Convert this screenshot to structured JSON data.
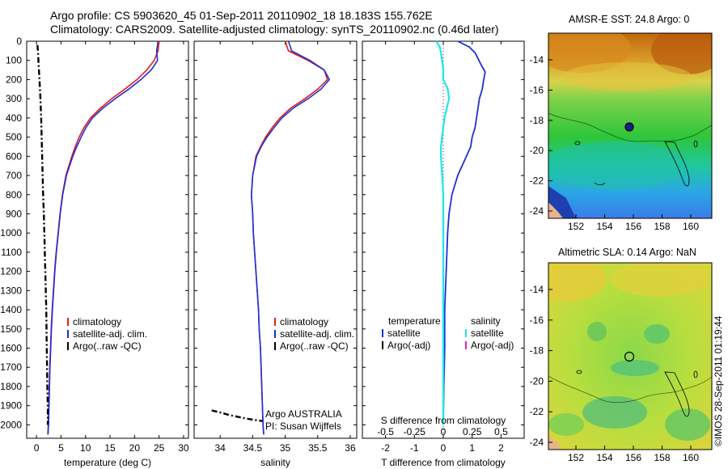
{
  "header": {
    "title_line1": "Argo profile: CS 5903620_45 01-Sep-2011 20110902_18 18.183S 155.762E",
    "title_line2": "Climatology: CARS2009. Satellite-adjusted climatology: synTS_20110902.nc (0.46d later)"
  },
  "chart_data": [
    {
      "type": "line",
      "xlabel": "temperature (deg C)",
      "xlim": [
        -2,
        31
      ],
      "xticks": [
        0,
        5,
        10,
        15,
        20,
        25,
        30
      ],
      "ylim": [
        2070,
        0
      ],
      "yticks": [
        0,
        100,
        200,
        300,
        400,
        500,
        600,
        700,
        800,
        900,
        1000,
        1100,
        1200,
        1300,
        1400,
        1500,
        1600,
        1700,
        1800,
        1900,
        2000
      ],
      "legend": [
        "climatology",
        "satellite-adj. clim.",
        "Argo(..raw -QC)"
      ],
      "colors": [
        "#e31b1b",
        "#1d2fd8",
        "#000000"
      ],
      "series": [
        {
          "name": "climatology",
          "depth": [
            0,
            50,
            100,
            150,
            200,
            250,
            300,
            350,
            400,
            450,
            500,
            550,
            600,
            700,
            800,
            900,
            1000,
            1100,
            1200,
            1300,
            1400,
            1500,
            1600,
            1700,
            1800,
            1900,
            2000,
            2050
          ],
          "values": [
            25.0,
            24.8,
            24.0,
            22.5,
            20.5,
            18.0,
            15.3,
            13.0,
            11.0,
            9.7,
            8.7,
            7.9,
            7.2,
            6.0,
            5.3,
            4.8,
            4.4,
            4.0,
            3.7,
            3.45,
            3.2,
            3.0,
            2.85,
            2.7,
            2.6,
            2.5,
            2.4,
            2.3
          ]
        },
        {
          "name": "satellite-adj. clim.",
          "depth": [
            0,
            50,
            100,
            150,
            200,
            250,
            300,
            350,
            400,
            450,
            500,
            550,
            600,
            700,
            800,
            900,
            1000,
            1100,
            1200,
            1300,
            1400,
            1500,
            1600,
            1700,
            1800,
            1900,
            2000,
            2050
          ],
          "values": [
            24.8,
            24.5,
            24.7,
            23.4,
            21.3,
            18.8,
            16.0,
            13.5,
            11.4,
            10.1,
            9.1,
            8.2,
            7.4,
            6.1,
            5.35,
            4.85,
            4.45,
            4.05,
            3.75,
            3.5,
            3.25,
            3.05,
            2.9,
            2.75,
            2.65,
            2.55,
            2.45,
            2.35
          ]
        },
        {
          "name": "Argo(..raw -QC)",
          "depth": [
            20,
            50,
            100,
            200,
            300,
            400,
            500,
            600,
            700,
            800,
            900,
            1000,
            1100,
            1200,
            1300,
            1400,
            1500,
            1600,
            1700,
            1800,
            1900,
            2000
          ],
          "values": [
            0.2,
            0.3,
            0.4,
            0.6,
            0.8,
            0.95,
            1.05,
            1.15,
            1.25,
            1.35,
            1.5,
            1.6,
            1.7,
            1.8,
            1.9,
            2.0,
            2.05,
            2.1,
            2.15,
            2.2,
            2.3,
            2.3
          ]
        }
      ]
    },
    {
      "type": "line",
      "xlabel": "salinity",
      "xlim": [
        33.6,
        36.1
      ],
      "xticks": [
        34,
        34.5,
        35,
        35.5,
        36
      ],
      "ylim": [
        2070,
        0
      ],
      "legend": [
        "climatology",
        "satellite-adj. clim.",
        "Argo(..raw -QC)"
      ],
      "colors": [
        "#e31b1b",
        "#1d2fd8",
        "#000000"
      ],
      "annotation": [
        "Argo AUSTRALIA",
        "PI: Susan Wijffels"
      ],
      "series": [
        {
          "name": "climatology",
          "depth": [
            0,
            50,
            100,
            150,
            200,
            250,
            300,
            350,
            400,
            450,
            500,
            550,
            600,
            700,
            800,
            900,
            1000,
            1100,
            1200,
            1300,
            1400,
            1500,
            1600,
            1700,
            1800,
            1900,
            2000,
            2050
          ],
          "values": [
            35.0,
            35.05,
            35.35,
            35.6,
            35.65,
            35.5,
            35.3,
            35.08,
            34.92,
            34.8,
            34.7,
            34.62,
            34.55,
            34.5,
            34.48,
            34.5,
            34.51,
            34.53,
            34.55,
            34.57,
            34.59,
            34.6,
            34.62,
            34.63,
            34.64,
            34.65,
            34.66,
            34.67
          ]
        },
        {
          "name": "satellite-adj. clim.",
          "depth": [
            0,
            50,
            100,
            150,
            200,
            250,
            300,
            350,
            400,
            450,
            500,
            550,
            600,
            700,
            800,
            900,
            1000,
            1100,
            1200,
            1300,
            1400,
            1500,
            1600,
            1700,
            1800,
            1900,
            2000,
            2050
          ],
          "values": [
            35.05,
            35.1,
            35.38,
            35.6,
            35.68,
            35.55,
            35.35,
            35.12,
            34.95,
            34.83,
            34.72,
            34.63,
            34.56,
            34.5,
            34.48,
            34.5,
            34.51,
            34.53,
            34.55,
            34.57,
            34.59,
            34.6,
            34.62,
            34.63,
            34.64,
            34.65,
            34.66,
            34.67
          ]
        },
        {
          "name": "Argo(..raw -QC)",
          "depth": [
            1925,
            1935,
            1950,
            1960,
            1970,
            1980
          ],
          "values": [
            33.87,
            34.0,
            34.15,
            34.3,
            34.45,
            34.65
          ]
        }
      ]
    },
    {
      "type": "line",
      "xlabel_top": "S difference from climatology",
      "xlabel": "T difference from climatology",
      "xlim": [
        -2.8,
        2.8
      ],
      "xticks_bottom": [
        -2,
        -1,
        0,
        1,
        2
      ],
      "xticks_top": [
        "-0.5",
        "-0.25",
        "0",
        "0.25",
        "0.5"
      ],
      "ylim": [
        2070,
        0
      ],
      "legend_temperature": [
        "temperature",
        "satellite",
        "Argo(-adj)"
      ],
      "legend_salinity": [
        "salinity",
        "satellite",
        "Argo(-adj)"
      ],
      "colors": [
        "#1d2fd8",
        "#000000",
        "#1ee6e6",
        "#e020e0"
      ],
      "series": [
        {
          "name": "temperature satellite",
          "depth": [
            0,
            30,
            60,
            90,
            120,
            160,
            200,
            250,
            300,
            350,
            400,
            450,
            500,
            550,
            600,
            700,
            800,
            900,
            1000,
            1200,
            1400,
            1600,
            1800,
            2000
          ],
          "values": [
            0.5,
            0.9,
            1.1,
            1.2,
            1.3,
            1.45,
            1.4,
            1.35,
            1.25,
            1.2,
            1.15,
            1.1,
            1.0,
            0.95,
            0.8,
            0.5,
            0.3,
            0.2,
            0.15,
            0.1,
            0.05,
            0.05,
            0.02,
            0.0
          ]
        },
        {
          "name": "salinity satellite",
          "depth": [
            0,
            30,
            60,
            100,
            150,
            200,
            250,
            300,
            350,
            400,
            450,
            500,
            550,
            600,
            700,
            800,
            900,
            1000,
            1200,
            1400,
            1600,
            1800,
            2000
          ],
          "values": [
            -0.06,
            -0.03,
            -0.02,
            -0.01,
            0.0,
            0.0,
            0.04,
            0.05,
            0.03,
            0.01,
            0.0,
            -0.01,
            -0.02,
            -0.02,
            -0.01,
            0.0,
            0.0,
            0.0,
            0.0,
            0.0,
            0.0,
            0.0,
            0.0
          ]
        }
      ]
    }
  ],
  "maps": {
    "sst": {
      "title": "AMSR-E SST: 24.8 Argo: 0",
      "yticks": [
        "-14",
        "-16",
        "-18",
        "-20",
        "-22",
        "-24"
      ],
      "xticks": [
        "152",
        "154",
        "156",
        "158",
        "160"
      ],
      "float_filled": true
    },
    "sla": {
      "title": "Altimetric SLA: 0.14 Argo: NaN",
      "yticks": [
        "-14",
        "-16",
        "-18",
        "-20",
        "-22",
        "-24"
      ],
      "xticks": [
        "152",
        "154",
        "156",
        "158",
        "160"
      ],
      "float_filled": false
    }
  },
  "footer": {
    "credit": "©IMOS 28-Sep-2011 01:19:44"
  }
}
